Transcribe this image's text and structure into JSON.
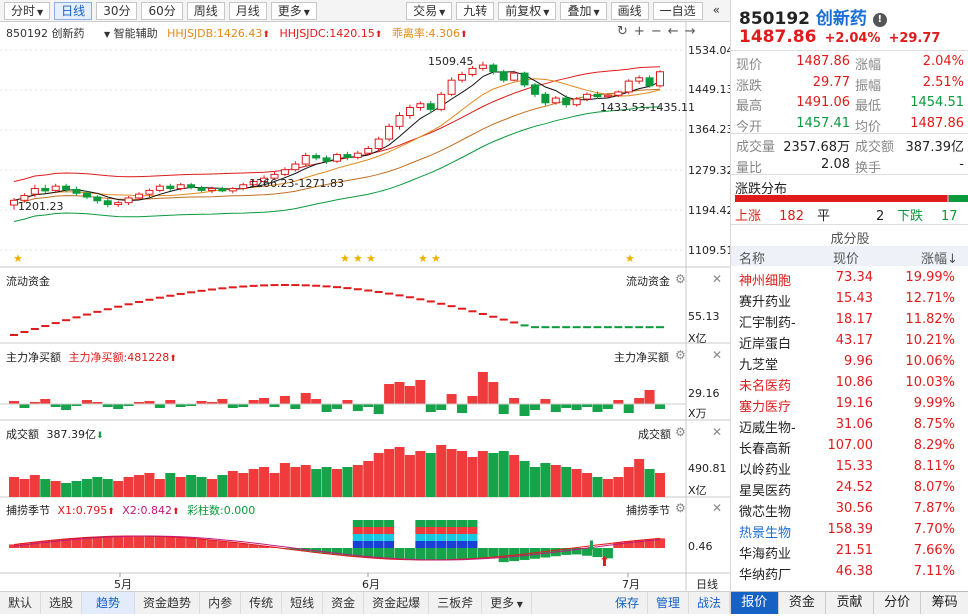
{
  "toolbar": {
    "left": [
      "分时",
      "日线",
      "30分",
      "60分",
      "周线",
      "月线",
      "更多"
    ],
    "right": [
      "交易",
      "九转",
      "前复权",
      "叠加",
      "画线",
      "一自选"
    ]
  },
  "info_line": {
    "code_name": "850192 创新药",
    "assist": "智能辅助",
    "ind1": "HHJSJDB:1426.43",
    "ind2": "HHJSJDC:1420.15",
    "ind3": "乖离率:4.306"
  },
  "price_axis": [
    "1534.04",
    "1449.13",
    "1364.23",
    "1279.32",
    "1194.42",
    "1109.51"
  ],
  "annotations": {
    "high": "1509.45",
    "mid_low": "1266.23-1271.83",
    "low": "1201.23",
    "right": "1433.53-1435.11"
  },
  "panels": {
    "flow": {
      "title": "流动资金",
      "title_r": "流动资金",
      "val": "55.13",
      "unit": "X亿"
    },
    "main_net": {
      "title": "主力净买额",
      "ind": "主力净买额:481228",
      "title_r": "主力净买额",
      "val": "29.16",
      "unit": "X万"
    },
    "turnover": {
      "title": "成交额",
      "ind": "387.39亿",
      "title_r": "成交额",
      "val": "490.81",
      "unit": "X亿"
    },
    "season": {
      "title": "捕捞季节",
      "x1": "X1:0.795",
      "x2": "X2:0.842",
      "col": "彩柱数:0.000",
      "title_r": "捕捞季节",
      "val": "0.46"
    }
  },
  "dates": {
    "may": "5月",
    "jun": "6月",
    "jul": "7月"
  },
  "bottom_tabs": [
    "默认",
    "选股",
    "趋势",
    "资金趋势",
    "内参",
    "传统",
    "短线",
    "资金",
    "资金起爆",
    "三板斧",
    "更多"
  ],
  "bottom_right": [
    "保存",
    "管理",
    "战法"
  ],
  "day_line": "日线",
  "quote": {
    "code": "850192",
    "name": "创新药",
    "price": "1487.86",
    "pct": "+2.04%",
    "chg": "+29.77",
    "rows": [
      [
        "现价",
        "1487.86",
        "涨幅",
        "2.04%"
      ],
      [
        "涨跌",
        "29.77",
        "振幅",
        "2.51%"
      ],
      [
        "最高",
        "1491.06",
        "最低",
        "1454.51"
      ],
      [
        "今开",
        "1457.41",
        "均价",
        "1487.86"
      ],
      [
        "成交量",
        "2357.68万",
        "成交额",
        "387.39亿"
      ],
      [
        "量比",
        "2.08",
        "换手",
        "-"
      ]
    ]
  },
  "breadth": {
    "title": "涨跌分布",
    "up_label": "上涨",
    "up": "182",
    "flat_label": "平",
    "flat": "2",
    "down_label": "下跌",
    "down": "17"
  },
  "constituents": {
    "title": "成分股",
    "headers": [
      "名称",
      "现价",
      "涨幅↓"
    ],
    "rows": [
      {
        "name": "神州细胞",
        "price": "73.34",
        "pct": "19.99%",
        "color": "#e01b1b"
      },
      {
        "name": "赛升药业",
        "price": "15.43",
        "pct": "12.71%",
        "color": "#222"
      },
      {
        "name": "汇宇制药-",
        "price": "18.17",
        "pct": "11.82%",
        "color": "#222"
      },
      {
        "name": "近岸蛋白",
        "price": "43.17",
        "pct": "10.21%",
        "color": "#222"
      },
      {
        "name": "九芝堂",
        "price": "9.96",
        "pct": "10.06%",
        "color": "#222"
      },
      {
        "name": "未名医药",
        "price": "10.86",
        "pct": "10.03%",
        "color": "#e01b1b"
      },
      {
        "name": "塞力医疗",
        "price": "19.16",
        "pct": "9.99%",
        "color": "#e01b1b"
      },
      {
        "name": "迈威生物-",
        "price": "31.06",
        "pct": "8.75%",
        "color": "#222"
      },
      {
        "name": "长春高新",
        "price": "107.00",
        "pct": "8.29%",
        "color": "#222"
      },
      {
        "name": "以岭药业",
        "price": "15.33",
        "pct": "8.11%",
        "color": "#222"
      },
      {
        "name": "星昊医药",
        "price": "24.52",
        "pct": "8.07%",
        "color": "#222"
      },
      {
        "name": "微芯生物",
        "price": "30.56",
        "pct": "7.87%",
        "color": "#222"
      },
      {
        "name": "热景生物",
        "price": "158.39",
        "pct": "7.70%",
        "color": "#1a6fd6"
      },
      {
        "name": "华海药业",
        "price": "21.51",
        "pct": "7.66%",
        "color": "#222"
      },
      {
        "name": "华纳药厂",
        "price": "46.38",
        "pct": "7.11%",
        "color": "#222"
      }
    ]
  },
  "right_tabs": [
    "报价",
    "资金",
    "贡献",
    "分价",
    "筹码"
  ],
  "chart_data": {
    "type": "candlestick",
    "y_range": [
      1109.51,
      1534.04
    ],
    "candles": [
      [
        1205,
        1215,
        1195,
        1220
      ],
      [
        1215,
        1225,
        1210,
        1230
      ],
      [
        1228,
        1240,
        1222,
        1248
      ],
      [
        1240,
        1235,
        1230,
        1248
      ],
      [
        1236,
        1245,
        1230,
        1250
      ],
      [
        1245,
        1238,
        1232,
        1250
      ],
      [
        1238,
        1230,
        1225,
        1244
      ],
      [
        1230,
        1222,
        1218,
        1235
      ],
      [
        1222,
        1214,
        1208,
        1226
      ],
      [
        1214,
        1206,
        1200,
        1218
      ],
      [
        1206,
        1210,
        1201,
        1214
      ],
      [
        1210,
        1220,
        1205,
        1224
      ],
      [
        1220,
        1228,
        1215,
        1232
      ],
      [
        1228,
        1236,
        1222,
        1240
      ],
      [
        1236,
        1245,
        1232,
        1250
      ],
      [
        1245,
        1240,
        1235,
        1250
      ],
      [
        1240,
        1248,
        1236,
        1252
      ],
      [
        1248,
        1242,
        1238,
        1252
      ],
      [
        1242,
        1236,
        1232,
        1246
      ],
      [
        1236,
        1240,
        1230,
        1244
      ],
      [
        1240,
        1235,
        1232,
        1244
      ],
      [
        1235,
        1240,
        1230,
        1243
      ],
      [
        1240,
        1248,
        1236,
        1252
      ],
      [
        1248,
        1255,
        1244,
        1260
      ],
      [
        1255,
        1262,
        1250,
        1268
      ],
      [
        1262,
        1270,
        1258,
        1275
      ],
      [
        1270,
        1280,
        1266,
        1285
      ],
      [
        1280,
        1292,
        1276,
        1298
      ],
      [
        1292,
        1310,
        1288,
        1316
      ],
      [
        1310,
        1305,
        1300,
        1315
      ],
      [
        1305,
        1298,
        1292,
        1310
      ],
      [
        1298,
        1312,
        1294,
        1316
      ],
      [
        1312,
        1306,
        1300,
        1318
      ],
      [
        1306,
        1315,
        1302,
        1320
      ],
      [
        1315,
        1325,
        1310,
        1330
      ],
      [
        1325,
        1345,
        1320,
        1350
      ],
      [
        1345,
        1372,
        1340,
        1378
      ],
      [
        1372,
        1395,
        1365,
        1402
      ],
      [
        1395,
        1412,
        1388,
        1418
      ],
      [
        1412,
        1420,
        1405,
        1425
      ],
      [
        1420,
        1408,
        1400,
        1426
      ],
      [
        1408,
        1440,
        1404,
        1445
      ],
      [
        1440,
        1470,
        1436,
        1476
      ],
      [
        1470,
        1482,
        1465,
        1488
      ],
      [
        1482,
        1495,
        1478,
        1500
      ],
      [
        1495,
        1502,
        1490,
        1509
      ],
      [
        1502,
        1488,
        1482,
        1506
      ],
      [
        1488,
        1470,
        1465,
        1492
      ],
      [
        1470,
        1485,
        1468,
        1490
      ],
      [
        1485,
        1460,
        1455,
        1488
      ],
      [
        1460,
        1440,
        1434,
        1464
      ],
      [
        1440,
        1422,
        1416,
        1445
      ],
      [
        1422,
        1432,
        1418,
        1436
      ],
      [
        1432,
        1418,
        1412,
        1438
      ],
      [
        1418,
        1430,
        1414,
        1434
      ],
      [
        1430,
        1440,
        1425,
        1444
      ],
      [
        1440,
        1435,
        1430,
        1446
      ],
      [
        1435,
        1438,
        1433,
        1442
      ],
      [
        1438,
        1445,
        1434,
        1448
      ],
      [
        1445,
        1468,
        1440,
        1472
      ],
      [
        1468,
        1475,
        1462,
        1480
      ],
      [
        1475,
        1458,
        1454,
        1480
      ],
      [
        1458,
        1487.86,
        1454.51,
        1491.06
      ]
    ]
  }
}
